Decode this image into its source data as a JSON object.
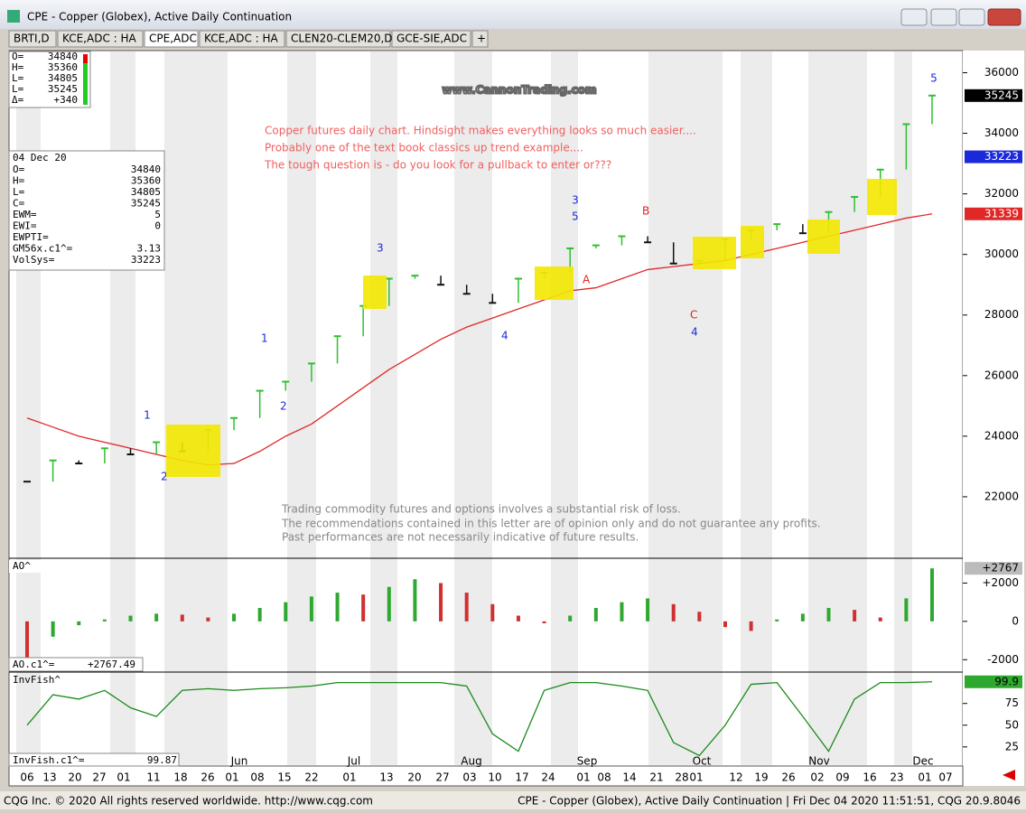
{
  "window": {
    "title": "CPE - Copper (Globex), Active Daily Continuation"
  },
  "tabs": [
    "BRTI,D",
    "KCE,ADC : HA",
    "CPE,ADC",
    "KCE,ADC : HA",
    "CLEN20-CLEM20,D",
    "GCE-SIE,ADC",
    "+"
  ],
  "quote_box": {
    "rows": [
      [
        "O=",
        "34840"
      ],
      [
        "H=",
        "35360"
      ],
      [
        "L=",
        "34805"
      ],
      [
        "L=",
        "35245"
      ],
      [
        "Δ=",
        "+340"
      ]
    ]
  },
  "info_box": {
    "date": "04 Dec 20",
    "rows": [
      [
        "O=",
        "34840"
      ],
      [
        "H=",
        "35360"
      ],
      [
        "L=",
        "34805"
      ],
      [
        "C=",
        "35245"
      ],
      [
        "EWM=",
        "5"
      ],
      [
        "EWI=",
        "0"
      ],
      [
        "EWPTI=",
        ""
      ],
      [
        "GM56x.c1^=",
        "3.13"
      ],
      [
        "VolSys=",
        "33223"
      ]
    ]
  },
  "watermark": "www.CannonTrading.com",
  "comment": [
    "Copper futures daily chart. Hindsight makes everything looks so much easier....",
    "Probably one of the text book classics up trend example....",
    "The tough question is - do you look for a pullback to enter or???"
  ],
  "disclaimer": [
    "Trading commodity futures and options involves a substantial risk of loss.",
    "The recommendations contained in this letter are of opinion only and do not guarantee any profits.",
    "Past performances are not necessarily indicative of future results."
  ],
  "waves_major": [
    "1",
    "2",
    "3",
    "4",
    "5"
  ],
  "waves_minor": [
    "1",
    "2",
    "3",
    "4",
    "5",
    "A",
    "B",
    "C"
  ],
  "price_pane": {
    "ylim": [
      20000,
      36700
    ],
    "yticks": [
      22000,
      24000,
      26000,
      28000,
      30000,
      32000,
      34000,
      36000
    ],
    "close": [
      22500,
      23200,
      23100,
      23600,
      23400,
      23800,
      23500,
      24200,
      24600,
      25500,
      25800,
      26400,
      27300,
      28300,
      29200,
      29300,
      29000,
      28700,
      28400,
      29200,
      29400,
      30200,
      30300,
      30600,
      30400,
      29700,
      29800,
      30500,
      30800,
      31000,
      30700,
      31400,
      31900,
      32800,
      34300,
      35245
    ],
    "average": [
      24600,
      24300,
      24000,
      23800,
      23600,
      23400,
      23200,
      23050,
      23100,
      23500,
      24000,
      24400,
      25000,
      25600,
      26200,
      26700,
      27200,
      27600,
      27900,
      28200,
      28500,
      28800,
      28900,
      29200,
      29500,
      29600,
      29700,
      29800,
      30000,
      30200,
      30400,
      30600,
      30800,
      31000,
      31200,
      31339
    ],
    "markers": [
      {
        "value": 35245,
        "label": "35245"
      },
      {
        "value": 33223,
        "label": "33223"
      },
      {
        "value": 31339,
        "label": "31339"
      }
    ]
  },
  "ao_pane": {
    "name": "AO^",
    "readout": [
      "AO.c1^=",
      "+2767.49"
    ],
    "ylim": [
      -2600,
      3200
    ],
    "yticks": [
      {
        "value": 2000,
        "label": "+2000"
      },
      0,
      -2000
    ],
    "marker": {
      "value": 2767,
      "label": "+2767"
    },
    "values": [
      -1900,
      -800,
      -200,
      100,
      300,
      400,
      350,
      200,
      400,
      700,
      1000,
      1300,
      1500,
      1400,
      1800,
      2200,
      2000,
      1500,
      900,
      300,
      -100,
      300,
      700,
      1000,
      1200,
      900,
      500,
      -300,
      -500,
      100,
      400,
      700,
      600,
      200,
      1200,
      2767
    ]
  },
  "fisher_pane": {
    "name": "InvFish^",
    "readout": [
      "InvFish.c1^=",
      "99.87"
    ],
    "ylim": [
      3,
      109
    ],
    "yticks": [
      75,
      50,
      25
    ],
    "marker": 99.9,
    "values": [
      50,
      85,
      80,
      90,
      70,
      60,
      90,
      92,
      90,
      92,
      93,
      95,
      99,
      99,
      99,
      99,
      99,
      95,
      40,
      20,
      90,
      99,
      99,
      95,
      90,
      30,
      15,
      50,
      97,
      99,
      60,
      20,
      80,
      99,
      99,
      99.9
    ]
  },
  "date_axis": {
    "days": [
      "06",
      "13",
      "20",
      "27",
      "01",
      "11",
      "18",
      "26",
      "01",
      "08",
      "15",
      "22",
      "01",
      "13",
      "20",
      "27",
      "03",
      "10",
      "17",
      "24",
      "01",
      "08",
      "14",
      "21",
      "28",
      "01",
      "12",
      "19",
      "26",
      "02",
      "09",
      "16",
      "23",
      "01",
      "07"
    ],
    "months": [
      "Jun",
      "Jul",
      "Aug",
      "Sep",
      "Oct",
      "Nov",
      "Dec"
    ]
  },
  "status": {
    "left": "CQG Inc. © 2020 All rights reserved worldwide. http://www.cqg.com",
    "right": "CPE - Copper (Globex), Active Daily Continuation | Fri Dec 04 2020 11:51:51, CQG 20.9.8046"
  }
}
